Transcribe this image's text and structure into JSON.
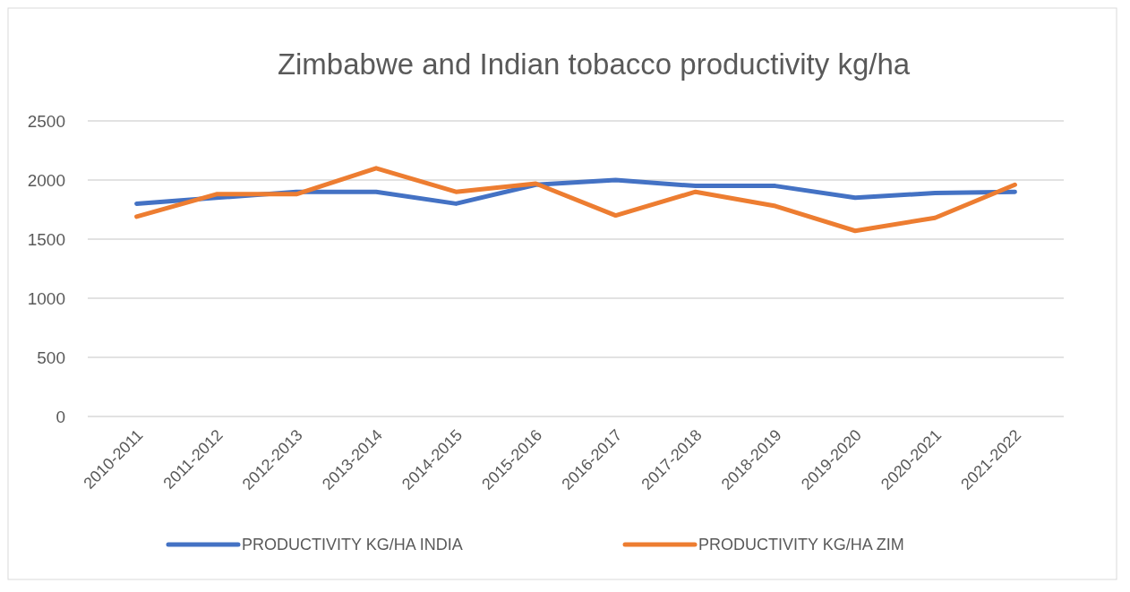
{
  "chart_data": {
    "type": "line",
    "title": "Zimbabwe and Indian tobacco productivity kg/ha",
    "categories": [
      "2010-2011",
      "2011-2012",
      "2012-2013",
      "2013-2014",
      "2014-2015",
      "2015-2016",
      "2016-2017",
      "2017-2018",
      "2018-2019",
      "2019-2020",
      "2020-2021",
      "2021-2022"
    ],
    "series": [
      {
        "name": "PRODUCTIVITY KG/HA INDIA",
        "color": "#4472c4",
        "values": [
          1800,
          1850,
          1900,
          1900,
          1800,
          1960,
          2000,
          1950,
          1950,
          1850,
          1890,
          1900
        ]
      },
      {
        "name": "PRODUCTIVITY KG/HA ZIM",
        "color": "#ed7d31",
        "values": [
          1690,
          1880,
          1880,
          2100,
          1900,
          1970,
          1700,
          1900,
          1780,
          1570,
          1680,
          1960
        ]
      }
    ],
    "ylim": [
      0,
      2500
    ],
    "yticks": [
      0,
      500,
      1000,
      1500,
      2000,
      2500
    ],
    "grid": "y",
    "legend": "bottom",
    "marker": "none",
    "line_style": "solid"
  }
}
